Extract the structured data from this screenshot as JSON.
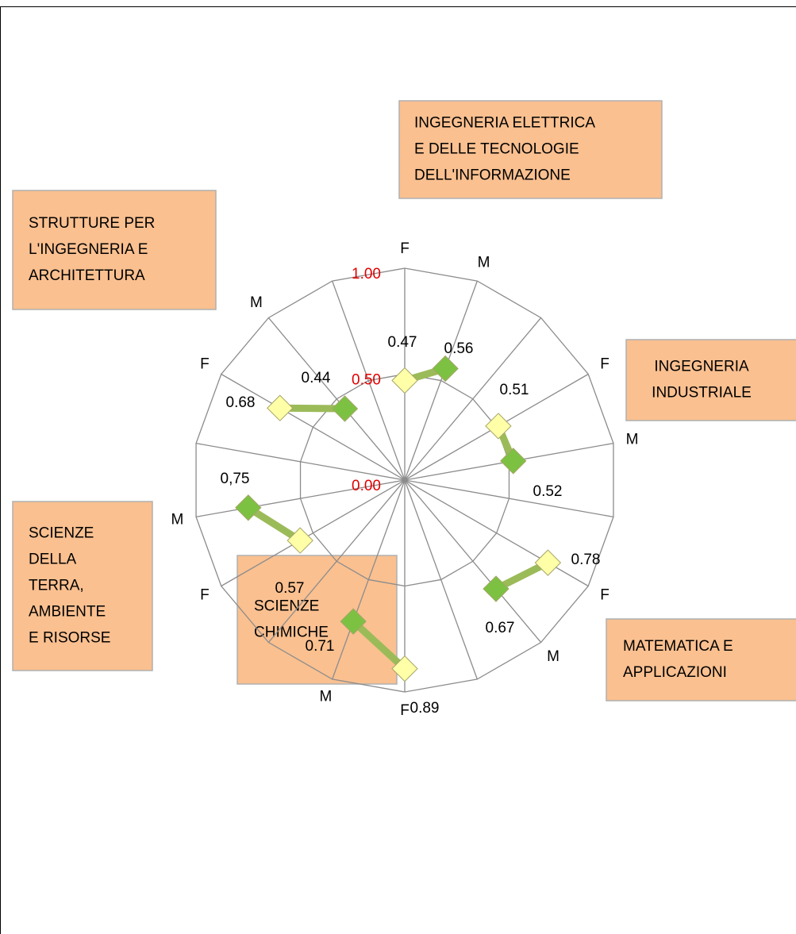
{
  "chart_data": {
    "type": "radar",
    "categories": [
      "F",
      "M",
      null,
      "F",
      "M",
      null,
      "F",
      "M",
      null,
      "F",
      "M",
      null,
      "F",
      "M",
      null,
      "F",
      "M",
      null
    ],
    "series": [
      {
        "color": "#9bbb59",
        "values": [
          0.47,
          0.56,
          null,
          0.51,
          0.52,
          null,
          0.78,
          0.67,
          null,
          0.89,
          0.71,
          null,
          0.57,
          0.75,
          null,
          0.68,
          0.44,
          null
        ],
        "value_labels": [
          "0.47",
          "0.56",
          null,
          "0.51",
          "0.52",
          null,
          "0.78",
          "0.67",
          null,
          "0.89",
          "0.71",
          null,
          "0.57",
          "0,75",
          null,
          "0.68",
          "0.44",
          null
        ],
        "marker_colors": [
          "#ffffa8",
          "#7dc142",
          null,
          "#ffffa8",
          "#7dc142",
          null,
          "#ffffa8",
          "#7dc142",
          null,
          "#ffffa8",
          "#7dc142",
          null,
          "#ffffa8",
          "#7dc142",
          null,
          "#ffffa8",
          "#7dc142",
          null
        ]
      }
    ],
    "ylim": [
      0,
      1
    ],
    "yticks": [
      {
        "value": 0,
        "label": "0.00"
      },
      {
        "value": 0.5,
        "label": "0.50"
      },
      {
        "value": 1,
        "label": "1.00"
      }
    ],
    "grid": true,
    "annotations": [
      [
        "INGEGNERIA ELETTRICA",
        "E DELLE TECNOLOGIE",
        "DELL'INFORMAZIONE"
      ],
      [
        "INGEGNERIA",
        "INDUSTRIALE"
      ],
      [
        "MATEMATICA E",
        "APPLICAZIONI"
      ],
      [
        "SCIENZE",
        "CHIMICHE"
      ],
      [
        "SCIENZE",
        "DELLA",
        "TERRA,",
        "AMBIENTE",
        "E RISORSE"
      ],
      [
        "STRUTTURE PER",
        "L'INGEGNERIA E",
        "ARCHITETTURA"
      ]
    ]
  }
}
